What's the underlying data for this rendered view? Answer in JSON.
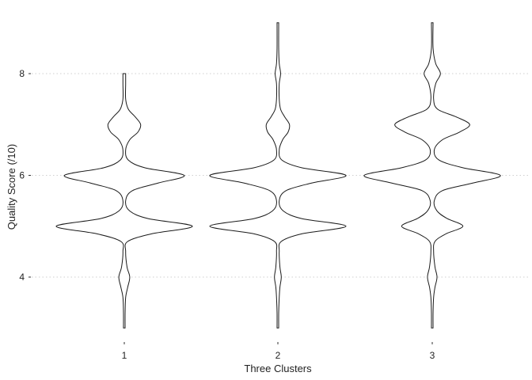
{
  "chart_data": {
    "type": "violin",
    "xlabel": "Three Clusters",
    "ylabel": "Quality Score (/10)",
    "categories": [
      "1",
      "2",
      "3"
    ],
    "y_ticks": [
      4,
      6,
      8
    ],
    "y_tick_labels": [
      "4",
      "6",
      "8"
    ],
    "ylim": [
      2.9,
      9.1
    ],
    "grid": "horizontal dotted at y ticks",
    "violins": [
      {
        "category": "1",
        "y_range": [
          3.0,
          8.0
        ],
        "density": [
          [
            3.0,
            0.01
          ],
          [
            3.3,
            0.01
          ],
          [
            3.6,
            0.02
          ],
          [
            3.8,
            0.05
          ],
          [
            4.0,
            0.08
          ],
          [
            4.2,
            0.04
          ],
          [
            4.5,
            0.02
          ],
          [
            4.7,
            0.05
          ],
          [
            4.85,
            0.4
          ],
          [
            5.0,
            1.0
          ],
          [
            5.15,
            0.35
          ],
          [
            5.3,
            0.08
          ],
          [
            5.5,
            0.02
          ],
          [
            5.7,
            0.12
          ],
          [
            5.85,
            0.5
          ],
          [
            6.0,
            0.88
          ],
          [
            6.15,
            0.3
          ],
          [
            6.3,
            0.06
          ],
          [
            6.5,
            0.02
          ],
          [
            6.7,
            0.08
          ],
          [
            6.85,
            0.2
          ],
          [
            7.0,
            0.24
          ],
          [
            7.15,
            0.16
          ],
          [
            7.3,
            0.06
          ],
          [
            7.5,
            0.02
          ],
          [
            7.8,
            0.02
          ],
          [
            8.0,
            0.02
          ]
        ]
      },
      {
        "category": "2",
        "y_range": [
          3.0,
          9.0
        ],
        "density": [
          [
            3.0,
            0.01
          ],
          [
            3.3,
            0.01
          ],
          [
            3.6,
            0.02
          ],
          [
            3.8,
            0.03
          ],
          [
            4.0,
            0.05
          ],
          [
            4.2,
            0.03
          ],
          [
            4.5,
            0.02
          ],
          [
            4.7,
            0.05
          ],
          [
            4.85,
            0.35
          ],
          [
            5.0,
            1.0
          ],
          [
            5.15,
            0.35
          ],
          [
            5.3,
            0.08
          ],
          [
            5.5,
            0.02
          ],
          [
            5.7,
            0.12
          ],
          [
            5.85,
            0.5
          ],
          [
            6.0,
            1.0
          ],
          [
            6.15,
            0.35
          ],
          [
            6.3,
            0.06
          ],
          [
            6.5,
            0.02
          ],
          [
            6.7,
            0.07
          ],
          [
            6.85,
            0.15
          ],
          [
            7.0,
            0.17
          ],
          [
            7.15,
            0.1
          ],
          [
            7.3,
            0.04
          ],
          [
            7.5,
            0.02
          ],
          [
            7.8,
            0.02
          ],
          [
            8.0,
            0.04
          ],
          [
            8.2,
            0.02
          ],
          [
            8.5,
            0.01
          ],
          [
            9.0,
            0.01
          ]
        ]
      },
      {
        "category": "3",
        "y_range": [
          3.0,
          9.0
        ],
        "density": [
          [
            3.0,
            0.01
          ],
          [
            3.3,
            0.01
          ],
          [
            3.6,
            0.02
          ],
          [
            3.8,
            0.04
          ],
          [
            4.0,
            0.07
          ],
          [
            4.2,
            0.04
          ],
          [
            4.5,
            0.02
          ],
          [
            4.7,
            0.04
          ],
          [
            4.85,
            0.2
          ],
          [
            5.0,
            0.45
          ],
          [
            5.15,
            0.22
          ],
          [
            5.3,
            0.07
          ],
          [
            5.5,
            0.03
          ],
          [
            5.7,
            0.15
          ],
          [
            5.85,
            0.6
          ],
          [
            6.0,
            1.0
          ],
          [
            6.15,
            0.45
          ],
          [
            6.3,
            0.1
          ],
          [
            6.5,
            0.03
          ],
          [
            6.7,
            0.15
          ],
          [
            6.85,
            0.4
          ],
          [
            7.0,
            0.55
          ],
          [
            7.15,
            0.35
          ],
          [
            7.3,
            0.08
          ],
          [
            7.5,
            0.02
          ],
          [
            7.8,
            0.05
          ],
          [
            8.0,
            0.12
          ],
          [
            8.2,
            0.05
          ],
          [
            8.5,
            0.01
          ],
          [
            9.0,
            0.01
          ]
        ]
      }
    ]
  }
}
